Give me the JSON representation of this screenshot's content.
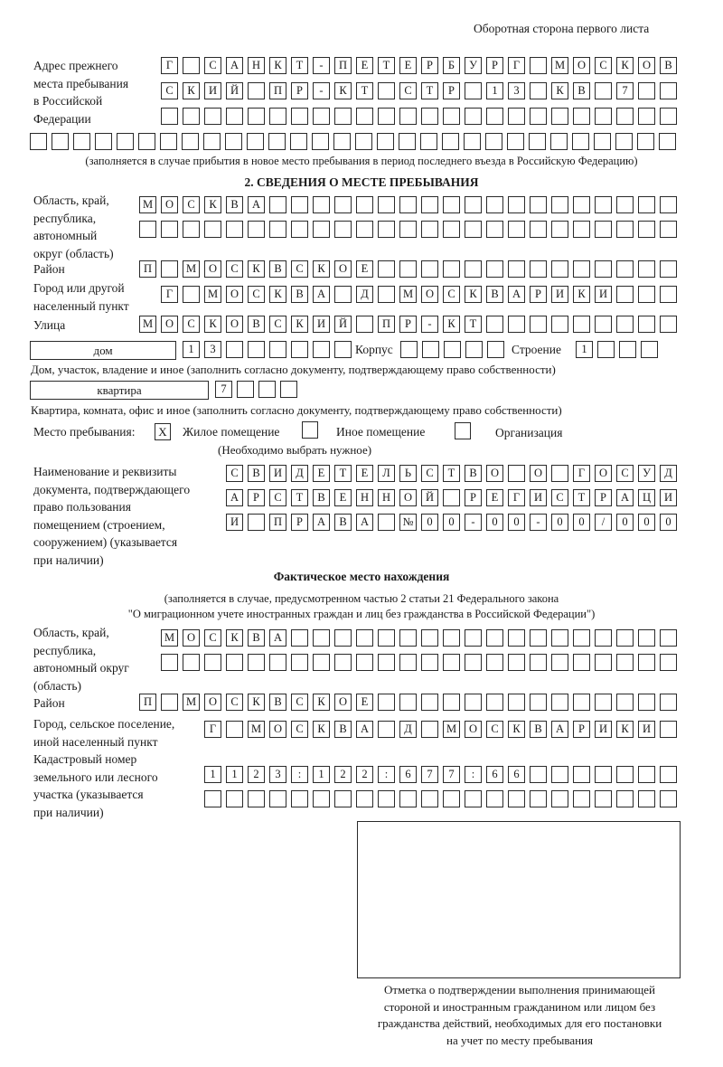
{
  "header": {
    "sheet_side": "Оборотная сторона первого листа"
  },
  "previous_address": {
    "label": [
      "Адрес прежнего",
      "места пребывания",
      "в Российской",
      "Федерации"
    ],
    "rows": [
      [
        "Г",
        "",
        "С",
        "А",
        "Н",
        "К",
        "Т",
        "-",
        "П",
        "Е",
        "Т",
        "Е",
        "Р",
        "Б",
        "У",
        "Р",
        "Г",
        "",
        "М",
        "О",
        "С",
        "К",
        "О",
        "В"
      ],
      [
        "С",
        "К",
        "И",
        "Й",
        "",
        "П",
        "Р",
        "-",
        "К",
        "Т",
        "",
        "С",
        "Т",
        "Р",
        "",
        "1",
        "3",
        "",
        "К",
        "В",
        "",
        "7",
        "",
        ""
      ],
      [
        "",
        "",
        "",
        "",
        "",
        "",
        "",
        "",
        "",
        "",
        "",
        "",
        "",
        "",
        "",
        "",
        "",
        "",
        "",
        "",
        "",
        "",
        "",
        ""
      ],
      [
        "",
        "",
        "",
        "",
        "",
        "",
        "",
        "",
        "",
        "",
        "",
        "",
        "",
        "",
        "",
        "",
        "",
        "",
        "",
        "",
        "",
        "",
        "",
        "",
        "",
        "",
        "",
        "",
        "",
        ""
      ]
    ],
    "note": "(заполняется в случае прибытия в новое место пребывания в период последнего въезда в Российскую Федерацию)"
  },
  "section2": {
    "title": "2. СВЕДЕНИЯ О МЕСТЕ ПРЕБЫВАНИЯ",
    "region_label": [
      "Область, край,",
      "республика,",
      "автономный",
      "округ (область)"
    ],
    "region_rows": [
      [
        "М",
        "О",
        "С",
        "К",
        "В",
        "А",
        "",
        "",
        "",
        "",
        "",
        "",
        "",
        "",
        "",
        "",
        "",
        "",
        "",
        "",
        "",
        "",
        "",
        "",
        ""
      ],
      [
        "",
        "",
        "",
        "",
        "",
        "",
        "",
        "",
        "",
        "",
        "",
        "",
        "",
        "",
        "",
        "",
        "",
        "",
        "",
        "",
        "",
        "",
        "",
        "",
        ""
      ]
    ],
    "district_label": "Район",
    "district_row": [
      "П",
      "",
      "М",
      "О",
      "С",
      "К",
      "В",
      "С",
      "К",
      "О",
      "Е",
      "",
      "",
      "",
      "",
      "",
      "",
      "",
      "",
      "",
      "",
      "",
      "",
      "",
      ""
    ],
    "city_label": [
      "Город или другой",
      "населенный пункт"
    ],
    "city_row": [
      "Г",
      "",
      "М",
      "О",
      "С",
      "К",
      "В",
      "А",
      "",
      "Д",
      "",
      "М",
      "О",
      "С",
      "К",
      "В",
      "А",
      "Р",
      "И",
      "К",
      "И",
      "",
      "",
      ""
    ],
    "street_label": "Улица",
    "street_row": [
      "М",
      "О",
      "С",
      "К",
      "О",
      "В",
      "С",
      "К",
      "И",
      "Й",
      "",
      "П",
      "Р",
      "-",
      "К",
      "Т",
      "",
      "",
      "",
      "",
      "",
      "",
      "",
      "",
      ""
    ],
    "house_type": "дом",
    "house_cells": [
      "1",
      "3",
      "",
      "",
      "",
      "",
      "",
      ""
    ],
    "korpus_label": "Корпус",
    "korpus_cells": [
      "",
      "",
      "",
      "",
      ""
    ],
    "building_label": "Строение",
    "building_cells": [
      "1",
      "",
      "",
      ""
    ],
    "house_note": "Дом, участок, владение и иное (заполнить согласно документу, подтверждающему право собственности)",
    "apartment_type": "квартира",
    "apartment_cells": [
      "7",
      "",
      "",
      ""
    ],
    "apartment_note": "Квартира, комната, офис и иное (заполнить согласно документу, подтверждающему право собственности)",
    "place_label": "Место пребывания:",
    "place_options": [
      {
        "label": "Жилое помещение",
        "mark": "X",
        "checked": true
      },
      {
        "label": "Иное помещение",
        "mark": "",
        "checked": false
      },
      {
        "label": "Организация",
        "mark": "",
        "checked": false
      }
    ],
    "place_note": "(Необходимо выбрать нужное)",
    "document_label": [
      "Наименование и реквизиты",
      "документа, подтверждающего",
      "право пользования",
      "помещением (строением,",
      "сооружением) (указывается",
      "при наличии)"
    ],
    "document_rows": [
      [
        "С",
        "В",
        "И",
        "Д",
        "Е",
        "Т",
        "Е",
        "Л",
        "Ь",
        "С",
        "Т",
        "В",
        "О",
        "",
        "О",
        "",
        "Г",
        "О",
        "С",
        "У",
        "Д"
      ],
      [
        "А",
        "Р",
        "С",
        "Т",
        "В",
        "Е",
        "Н",
        "Н",
        "О",
        "Й",
        "",
        "Р",
        "Е",
        "Г",
        "И",
        "С",
        "Т",
        "Р",
        "А",
        "Ц",
        "И"
      ],
      [
        "И",
        "",
        "П",
        "Р",
        "А",
        "В",
        "А",
        "",
        "№",
        "0",
        "0",
        "-",
        "0",
        "0",
        "-",
        "0",
        "0",
        "/",
        "0",
        "0",
        "0"
      ]
    ]
  },
  "actual_location": {
    "title": "Фактическое место нахождения",
    "subtitle": [
      "(заполняется в случае, предусмотренном частью 2 статьи 21 Федерального закона",
      "\"О миграционном учете иностранных граждан и лиц без гражданства в Российской Федерации\")"
    ],
    "region_label": [
      "Область, край,",
      "республика,",
      "автономный округ",
      "(область)"
    ],
    "region_rows": [
      [
        "М",
        "О",
        "С",
        "К",
        "В",
        "А",
        "",
        "",
        "",
        "",
        "",
        "",
        "",
        "",
        "",
        "",
        "",
        "",
        "",
        "",
        "",
        "",
        "",
        ""
      ],
      [
        "",
        "",
        "",
        "",
        "",
        "",
        "",
        "",
        "",
        "",
        "",
        "",
        "",
        "",
        "",
        "",
        "",
        "",
        "",
        "",
        "",
        "",
        "",
        ""
      ]
    ],
    "district_label": "Район",
    "district_row": [
      "П",
      "",
      "М",
      "О",
      "С",
      "К",
      "В",
      "С",
      "К",
      "О",
      "Е",
      "",
      "",
      "",
      "",
      "",
      "",
      "",
      "",
      "",
      "",
      "",
      "",
      "",
      ""
    ],
    "city_label": [
      "Город, сельское поселение,",
      "иной населенный пункт"
    ],
    "city_row": [
      "Г",
      "",
      "М",
      "О",
      "С",
      "К",
      "В",
      "А",
      "",
      "Д",
      "",
      "М",
      "О",
      "С",
      "К",
      "В",
      "А",
      "Р",
      "И",
      "К",
      "И",
      ""
    ],
    "cadastral_label": [
      "Кадастровый номер",
      "земельного или лесного",
      "участка (указывается",
      "при наличии)"
    ],
    "cadastral_rows": [
      [
        "1",
        "1",
        "2",
        "3",
        ":",
        "1",
        "2",
        "2",
        ":",
        "6",
        "7",
        "7",
        ":",
        "6",
        "6",
        "",
        "",
        "",
        "",
        "",
        "",
        ""
      ],
      [
        "",
        "",
        "",
        "",
        "",
        "",
        "",
        "",
        "",
        "",
        "",
        "",
        "",
        "",
        "",
        "",
        "",
        "",
        "",
        "",
        "",
        ""
      ]
    ]
  },
  "confirmation": {
    "caption": [
      "Отметка о подтверждении выполнения принимающей",
      "стороной и иностранным гражданином или лицом без",
      "гражданства действий, необходимых для его постановки",
      "на учет по месту пребывания"
    ]
  }
}
